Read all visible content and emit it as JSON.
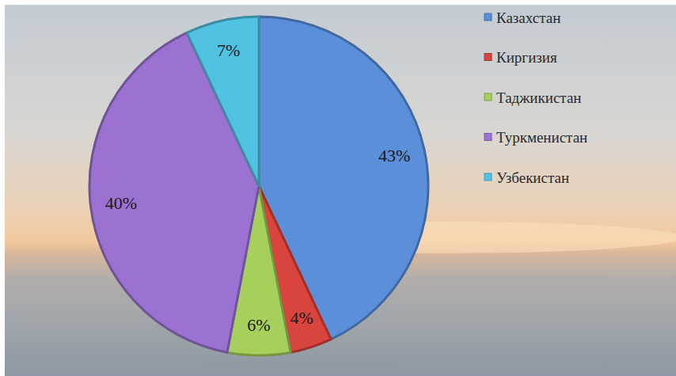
{
  "chart_data": {
    "type": "pie",
    "categories": [
      "Казахстан",
      "Киргизия",
      "Таджикистан",
      "Туркменистан",
      "Узбекистан"
    ],
    "values": [
      43,
      4,
      6,
      40,
      7
    ],
    "value_labels": [
      "43%",
      "4%",
      "6%",
      "40%",
      "7%"
    ],
    "colors": [
      "#5b8fd9",
      "#d9443f",
      "#a6cf5c",
      "#9b72d2",
      "#52c2e2"
    ],
    "data_labels": true,
    "legend": "top-right"
  }
}
